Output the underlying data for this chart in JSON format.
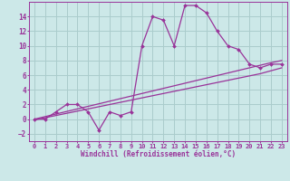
{
  "xlabel": "Windchill (Refroidissement éolien,°C)",
  "background_color": "#cce8e8",
  "grid_color": "#aacccc",
  "line_color": "#993399",
  "xlim": [
    -0.5,
    23.5
  ],
  "ylim": [
    -3,
    16
  ],
  "xticks": [
    0,
    1,
    2,
    3,
    4,
    5,
    6,
    7,
    8,
    9,
    10,
    11,
    12,
    13,
    14,
    15,
    16,
    17,
    18,
    19,
    20,
    21,
    22,
    23
  ],
  "yticks": [
    -2,
    0,
    2,
    4,
    6,
    8,
    10,
    12,
    14
  ],
  "main_y": [
    0,
    0,
    1,
    2,
    2,
    1,
    -1.5,
    1,
    0.5,
    1,
    10,
    14,
    13.5,
    10,
    15.5,
    15.5,
    14.5,
    12,
    10,
    9.5,
    7.5,
    7,
    7.5,
    7.5
  ],
  "line1_y": [
    0.0,
    0.35,
    0.7,
    1.05,
    1.4,
    1.75,
    2.1,
    2.45,
    2.8,
    3.15,
    3.5,
    3.85,
    4.2,
    4.55,
    4.9,
    5.25,
    5.6,
    5.95,
    6.3,
    6.65,
    7.0,
    7.35,
    7.7,
    8.0
  ],
  "line2_y": [
    -0.1,
    0.2,
    0.5,
    0.8,
    1.1,
    1.4,
    1.7,
    2.0,
    2.3,
    2.6,
    2.9,
    3.2,
    3.5,
    3.8,
    4.1,
    4.4,
    4.7,
    5.0,
    5.3,
    5.6,
    5.9,
    6.2,
    6.6,
    7.0
  ]
}
